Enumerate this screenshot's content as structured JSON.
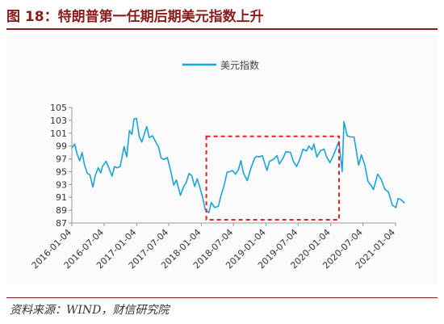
{
  "figure": {
    "title": "图 18：特朗普第一任期后期美元指数上升",
    "source": "资料来源：WIND，财信研究院"
  },
  "chart_data": {
    "type": "line",
    "title": "",
    "xlabel": "",
    "ylabel": "",
    "ylim": [
      87,
      105
    ],
    "yticks": [
      87,
      89,
      91,
      93,
      95,
      97,
      99,
      101,
      103,
      105
    ],
    "xticks": [
      "2016-01-04",
      "2016-07-04",
      "2017-01-04",
      "2017-07-04",
      "2018-01-04",
      "2018-07-04",
      "2019-01-04",
      "2019-07-04",
      "2020-01-04",
      "2020-07-04",
      "2021-01-04"
    ],
    "grid": false,
    "legend": {
      "position": "top-center"
    },
    "colors": {
      "line": "#1ba3dc",
      "highlight_box": "#e8211c"
    },
    "highlight": {
      "x_start": "2018-02-01",
      "x_end": "2020-02-20",
      "y_low": 87.5,
      "y_high": 100.5
    },
    "series": [
      {
        "name": "美元指数",
        "points": [
          [
            "2016-01-04",
            98.7
          ],
          [
            "2016-01-20",
            99.3
          ],
          [
            "2016-02-03",
            97.7
          ],
          [
            "2016-02-17",
            96.7
          ],
          [
            "2016-03-02",
            98.0
          ],
          [
            "2016-03-16",
            96.0
          ],
          [
            "2016-04-01",
            94.7
          ],
          [
            "2016-04-15",
            94.5
          ],
          [
            "2016-05-02",
            92.6
          ],
          [
            "2016-05-16",
            94.5
          ],
          [
            "2016-06-01",
            95.6
          ],
          [
            "2016-06-15",
            94.8
          ],
          [
            "2016-06-24",
            95.8
          ],
          [
            "2016-07-15",
            96.6
          ],
          [
            "2016-08-01",
            95.5
          ],
          [
            "2016-08-18",
            94.3
          ],
          [
            "2016-09-01",
            95.8
          ],
          [
            "2016-09-15",
            95.6
          ],
          [
            "2016-10-03",
            95.8
          ],
          [
            "2016-10-25",
            98.9
          ],
          [
            "2016-11-09",
            97.3
          ],
          [
            "2016-11-24",
            101.4
          ],
          [
            "2016-12-08",
            100.8
          ],
          [
            "2016-12-20",
            103.2
          ],
          [
            "2017-01-03",
            103.3
          ],
          [
            "2017-01-18",
            100.5
          ],
          [
            "2017-02-02",
            99.6
          ],
          [
            "2017-02-20",
            101.2
          ],
          [
            "2017-03-02",
            102.0
          ],
          [
            "2017-03-16",
            100.3
          ],
          [
            "2017-04-03",
            100.6
          ],
          [
            "2017-04-20",
            99.7
          ],
          [
            "2017-05-08",
            98.8
          ],
          [
            "2017-05-22",
            97.1
          ],
          [
            "2017-06-08",
            96.9
          ],
          [
            "2017-06-26",
            97.2
          ],
          [
            "2017-07-14",
            95.2
          ],
          [
            "2017-08-01",
            92.9
          ],
          [
            "2017-08-16",
            93.7
          ],
          [
            "2017-09-08",
            91.3
          ],
          [
            "2017-09-25",
            92.6
          ],
          [
            "2017-10-10",
            93.3
          ],
          [
            "2017-10-26",
            94.7
          ],
          [
            "2017-11-10",
            94.4
          ],
          [
            "2017-11-27",
            92.7
          ],
          [
            "2017-12-12",
            93.9
          ],
          [
            "2017-12-28",
            92.4
          ],
          [
            "2018-01-12",
            90.9
          ],
          [
            "2018-01-25",
            89.1
          ],
          [
            "2018-02-15",
            88.6
          ],
          [
            "2018-03-01",
            90.2
          ],
          [
            "2018-03-20",
            89.4
          ],
          [
            "2018-04-10",
            89.6
          ],
          [
            "2018-04-25",
            91.3
          ],
          [
            "2018-05-10",
            92.6
          ],
          [
            "2018-05-29",
            94.9
          ],
          [
            "2018-06-15",
            95.0
          ],
          [
            "2018-06-28",
            95.2
          ],
          [
            "2018-07-16",
            94.6
          ],
          [
            "2018-08-01",
            95.3
          ],
          [
            "2018-08-15",
            96.7
          ],
          [
            "2018-08-29",
            94.8
          ],
          [
            "2018-09-20",
            93.6
          ],
          [
            "2018-10-10",
            95.5
          ],
          [
            "2018-10-31",
            97.1
          ],
          [
            "2018-11-13",
            97.4
          ],
          [
            "2018-11-28",
            97.3
          ],
          [
            "2018-12-14",
            97.5
          ],
          [
            "2019-01-09",
            95.2
          ],
          [
            "2019-01-24",
            96.6
          ],
          [
            "2019-02-14",
            96.9
          ],
          [
            "2019-03-07",
            97.5
          ],
          [
            "2019-03-20",
            96.2
          ],
          [
            "2019-04-10",
            97.1
          ],
          [
            "2019-04-26",
            98.1
          ],
          [
            "2019-05-22",
            98.0
          ],
          [
            "2019-06-07",
            96.6
          ],
          [
            "2019-06-25",
            95.8
          ],
          [
            "2019-07-12",
            96.8
          ],
          [
            "2019-08-01",
            98.5
          ],
          [
            "2019-08-20",
            98.2
          ],
          [
            "2019-09-03",
            99.0
          ],
          [
            "2019-09-20",
            98.4
          ],
          [
            "2019-10-01",
            99.3
          ],
          [
            "2019-10-18",
            97.3
          ],
          [
            "2019-11-08",
            98.3
          ],
          [
            "2019-11-28",
            98.5
          ],
          [
            "2019-12-12",
            97.3
          ],
          [
            "2019-12-31",
            96.4
          ],
          [
            "2020-01-20",
            97.6
          ],
          [
            "2020-02-19",
            99.7
          ],
          [
            "2020-03-09",
            95.0
          ],
          [
            "2020-03-19",
            102.8
          ],
          [
            "2020-04-06",
            100.6
          ],
          [
            "2020-04-24",
            100.4
          ],
          [
            "2020-05-15",
            100.4
          ],
          [
            "2020-06-10",
            96.0
          ],
          [
            "2020-06-25",
            97.6
          ],
          [
            "2020-07-15",
            96.0
          ],
          [
            "2020-08-01",
            93.5
          ],
          [
            "2020-08-20",
            92.8
          ],
          [
            "2020-09-01",
            92.2
          ],
          [
            "2020-09-25",
            94.6
          ],
          [
            "2020-10-15",
            93.8
          ],
          [
            "2020-11-04",
            92.3
          ],
          [
            "2020-11-25",
            91.8
          ],
          [
            "2020-12-17",
            89.8
          ],
          [
            "2021-01-06",
            89.4
          ],
          [
            "2021-01-18",
            90.8
          ],
          [
            "2021-02-01",
            90.7
          ],
          [
            "2021-02-25",
            90.1
          ]
        ]
      }
    ]
  }
}
